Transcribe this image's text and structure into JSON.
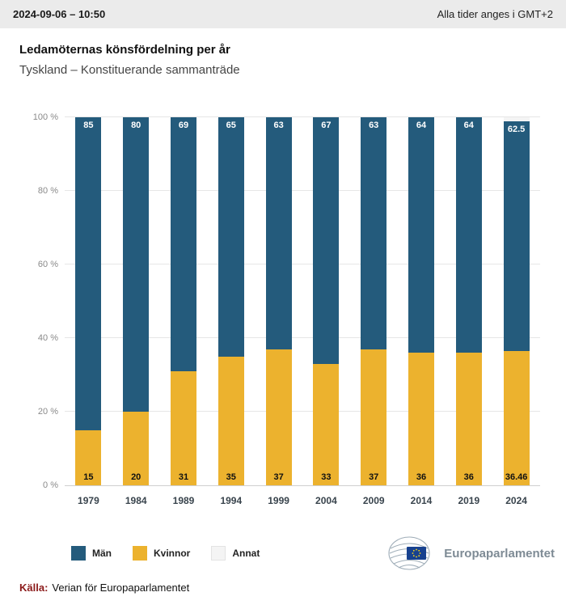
{
  "header": {
    "datetime": "2024-09-06 – 10:50",
    "timezone_note": "Alla tider anges i GMT+2"
  },
  "title": "Ledamöternas könsfördelning per år",
  "subtitle": "Tyskland – Konstituerande sammanträde",
  "chart_data": {
    "type": "bar",
    "stacked": true,
    "title": "Ledamöternas könsfördelning per år",
    "categories": [
      "1979",
      "1984",
      "1989",
      "1994",
      "1999",
      "2004",
      "2009",
      "2014",
      "2019",
      "2024"
    ],
    "series": [
      {
        "name": "Män",
        "color": "#245b7c",
        "values": [
          85,
          80,
          69,
          65,
          63,
          67,
          63,
          64,
          64,
          62.5
        ],
        "data_labels": true,
        "label_color": "#ffffff",
        "label_position": "top"
      },
      {
        "name": "Kvinnor",
        "color": "#ecb22e",
        "values": [
          15,
          20,
          31,
          35,
          37,
          33,
          37,
          36,
          36,
          36.46
        ],
        "data_labels": true,
        "label_color": "#111111",
        "label_position": "bottom"
      },
      {
        "name": "Annat",
        "color": "#f4f4f4",
        "values": [
          0,
          0,
          0,
          0,
          0,
          0,
          0,
          0,
          0,
          1.04
        ],
        "data_labels": false,
        "label_color": "#111111",
        "label_position": "top"
      }
    ],
    "stack_bottom_to_top": [
      "Kvinnor",
      "Män",
      "Annat"
    ],
    "ylim": [
      0,
      100
    ],
    "yticks": [
      {
        "value": 0,
        "label": "0 %"
      },
      {
        "value": 20,
        "label": "20 %"
      },
      {
        "value": 40,
        "label": "40 %"
      },
      {
        "value": 60,
        "label": "60 %"
      },
      {
        "value": 80,
        "label": "80 %"
      },
      {
        "value": 100,
        "label": "100 %"
      }
    ],
    "grid": true,
    "legend_position": "bottom"
  },
  "legend": [
    {
      "label": "Män",
      "color": "#245b7c"
    },
    {
      "label": "Kvinnor",
      "color": "#ecb22e"
    },
    {
      "label": "Annat",
      "color": "#f4f4f4",
      "border": "#e3e3e3"
    }
  ],
  "footer": {
    "source_label": "Källa:",
    "source_label_color": "#8b1a1a",
    "source_text": "Verian för Europaparlamentet",
    "brand": "Europaparlamentet"
  }
}
